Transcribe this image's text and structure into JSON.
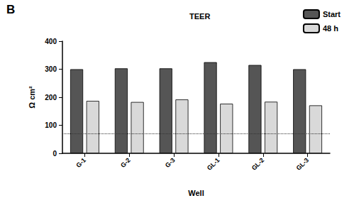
{
  "chart_data": {
    "type": "bar",
    "panel": "B",
    "title": "TEER",
    "x_label": "Well",
    "y_label": "Ω cm²",
    "categories": [
      "G-1",
      "G-2",
      "G-3",
      "GL-1",
      "GL-2",
      "GL-3"
    ],
    "series": [
      {
        "name": "Start",
        "color": "#555555",
        "values": [
          300,
          303,
          303,
          325,
          315,
          300
        ]
      },
      {
        "name": "48 h",
        "color": "#d9d9d9",
        "values": [
          187,
          183,
          192,
          177,
          184,
          171
        ]
      }
    ],
    "reference_line": 70,
    "ylim": [
      0,
      400
    ],
    "yticks": [
      0,
      100,
      200,
      300,
      400
    ],
    "grid": false,
    "legend": "upper right"
  }
}
